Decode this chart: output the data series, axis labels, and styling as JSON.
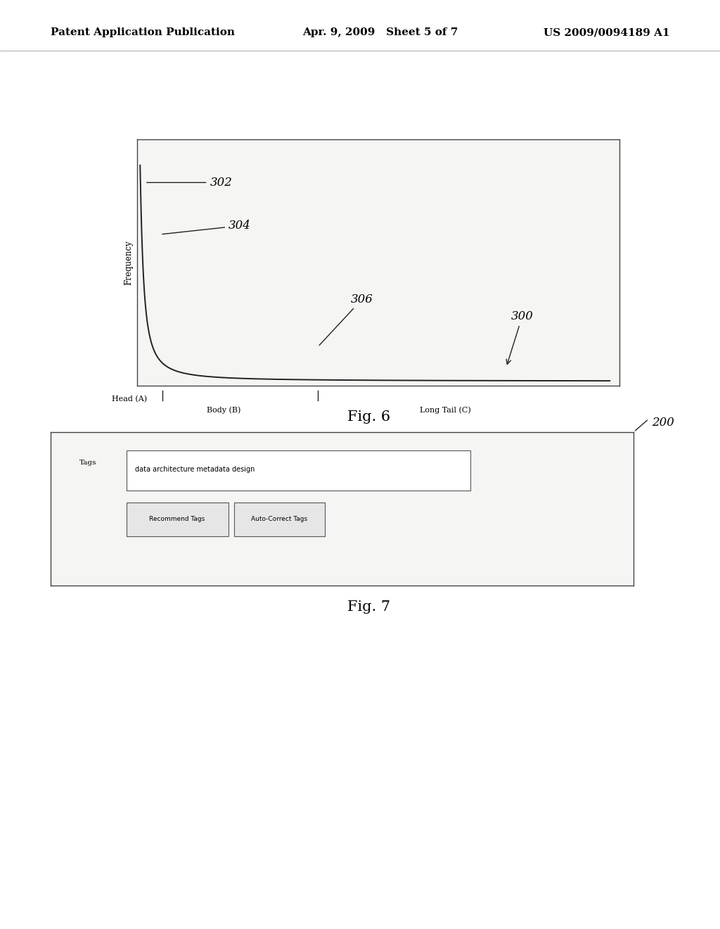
{
  "background_color": "#ffffff",
  "header_text_left": "Patent Application Publication",
  "header_text_mid": "Apr. 9, 2009   Sheet 5 of 7",
  "header_text_right": "US 2009/0094189 A1",
  "header_fontsize": 11,
  "fig6_title": "Fig. 6",
  "fig7_title": "Fig. 7",
  "fig6_ylabel": "Frequency",
  "fig6_xlabel_head": "Head (A)",
  "fig6_xlabel_body": "Body (B)",
  "fig6_xlabel_longtail": "Long Tail (C)",
  "label_302": "302",
  "label_304": "304",
  "label_306": "306",
  "label_300": "300",
  "label_200": "200",
  "fig7_tags_label": "Tags",
  "fig7_tags_content": "data architecture metadata design",
  "fig7_btn1": "Recommend Tags",
  "fig7_btn2": "Auto-Correct Tags",
  "curve_color": "#222222",
  "box_facecolor": "#f5f5f3",
  "box_edgecolor": "#444444"
}
